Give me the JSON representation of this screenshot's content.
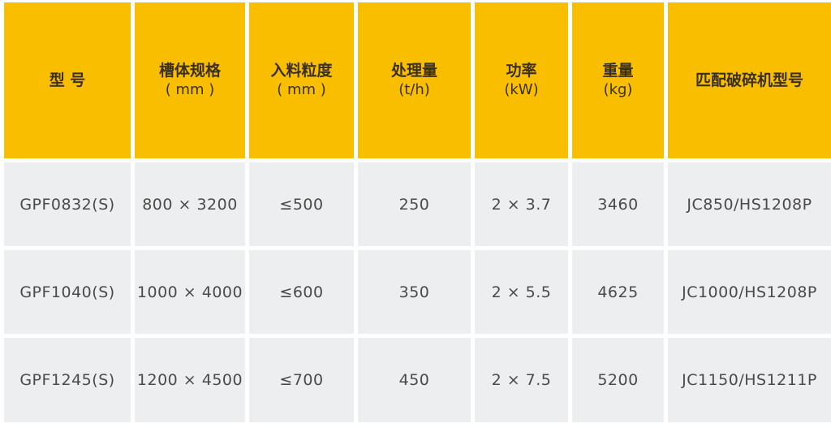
{
  "colors": {
    "header_bg": "#F9BE00",
    "row_bg": "#EDEEEF"
  },
  "headers": [
    {
      "title": "型 号",
      "unit": ""
    },
    {
      "title": "槽体规格",
      "unit": "( mm )"
    },
    {
      "title": "入料粒度",
      "unit": "( mm )"
    },
    {
      "title": "处理量",
      "unit": "(t/h)"
    },
    {
      "title": "功率",
      "unit": "(kW)"
    },
    {
      "title": "重量",
      "unit": "(kg)"
    },
    {
      "title": "匹配破碎机型号",
      "unit": ""
    }
  ],
  "rows": [
    [
      "GPF0832(S)",
      "800 × 3200",
      "≤500",
      "250",
      "2 × 3.7",
      "3460",
      "JC850/HS1208P"
    ],
    [
      "GPF1040(S)",
      "1000 × 4000",
      "≤600",
      "350",
      "2 × 5.5",
      "4625",
      "JC1000/HS1208P"
    ],
    [
      "GPF1245(S)",
      "1200 × 4500",
      "≤700",
      "450",
      "2 × 7.5",
      "5200",
      "JC1150/HS1211P"
    ]
  ]
}
